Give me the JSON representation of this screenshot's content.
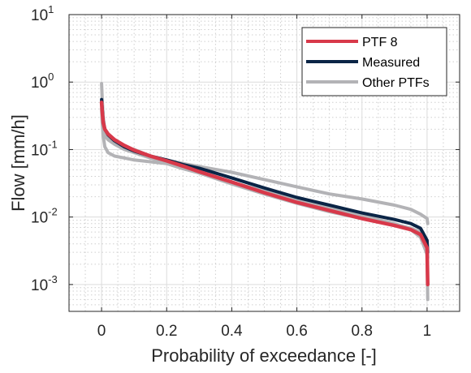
{
  "chart_data": {
    "type": "line",
    "xlabel": "Probability of exceedance [-]",
    "ylabel": "Flow [mm/h]",
    "xlim": [
      -0.1,
      1.1
    ],
    "ylim": [
      0.0004,
      10
    ],
    "yscale": "log",
    "grid": true,
    "minor_grid": true,
    "legend_position": "top-right",
    "x_ticks": [
      {
        "value": 0,
        "label": "0"
      },
      {
        "value": 0.2,
        "label": "0.2"
      },
      {
        "value": 0.4,
        "label": "0.4"
      },
      {
        "value": 0.6,
        "label": "0.6"
      },
      {
        "value": 0.8,
        "label": "0.8"
      },
      {
        "value": 1,
        "label": "1"
      }
    ],
    "y_ticks": [
      {
        "value": 0.001,
        "base": "10",
        "exp": "-3"
      },
      {
        "value": 0.01,
        "base": "10",
        "exp": "-2"
      },
      {
        "value": 0.1,
        "base": "10",
        "exp": "-1"
      },
      {
        "value": 1,
        "base": "10",
        "exp": "0"
      },
      {
        "value": 10,
        "base": "10",
        "exp": "1"
      }
    ],
    "series": [
      {
        "name": "Other PTFs",
        "color": "#b3b3b6",
        "lines": [
          {
            "x": [
              0,
              0.002,
              0.005,
              0.01,
              0.02,
              0.04,
              0.07,
              0.1,
              0.15,
              0.2,
              0.25,
              0.3,
              0.4,
              0.5,
              0.6,
              0.7,
              0.8,
              0.9,
              0.95,
              0.98,
              1.0,
              1.002
            ],
            "y": [
              0.95,
              0.55,
              0.3,
              0.2,
              0.16,
              0.13,
              0.11,
              0.1,
              0.08,
              0.07,
              0.062,
              0.056,
              0.046,
              0.036,
              0.028,
              0.022,
              0.0185,
              0.015,
              0.013,
              0.011,
              0.0095,
              0.008
            ]
          },
          {
            "x": [
              0,
              0.002,
              0.005,
              0.01,
              0.02,
              0.04,
              0.07,
              0.1,
              0.15,
              0.2,
              0.25,
              0.3,
              0.4,
              0.5,
              0.6,
              0.7,
              0.8,
              0.9,
              0.95,
              0.98,
              1.0,
              1.002
            ],
            "y": [
              0.4,
              0.25,
              0.16,
              0.11,
              0.09,
              0.08,
              0.075,
              0.07,
              0.066,
              0.062,
              0.052,
              0.045,
              0.033,
              0.024,
              0.018,
              0.0135,
              0.0105,
              0.008,
              0.0065,
              0.005,
              0.0028,
              0.0006
            ]
          },
          {
            "x": [
              0,
              0.002,
              0.005,
              0.01,
              0.02,
              0.04,
              0.07,
              0.1,
              0.15,
              0.2,
              0.25,
              0.3,
              0.4,
              0.5,
              0.6,
              0.7,
              0.8,
              0.9,
              0.95,
              0.98,
              1.0,
              1.002
            ],
            "y": [
              0.5,
              0.3,
              0.2,
              0.16,
              0.14,
              0.12,
              0.1,
              0.09,
              0.075,
              0.065,
              0.055,
              0.045,
              0.031,
              0.022,
              0.016,
              0.012,
              0.0095,
              0.0078,
              0.0068,
              0.006,
              0.0045,
              0.0025
            ]
          }
        ]
      },
      {
        "name": "Measured",
        "color": "#0b2546",
        "lines": [
          {
            "x": [
              0,
              0.002,
              0.005,
              0.01,
              0.02,
              0.04,
              0.07,
              0.1,
              0.15,
              0.2,
              0.25,
              0.3,
              0.4,
              0.5,
              0.6,
              0.7,
              0.8,
              0.9,
              0.95,
              0.98,
              1.0,
              1.002
            ],
            "y": [
              0.55,
              0.4,
              0.26,
              0.2,
              0.165,
              0.135,
              0.11,
              0.095,
              0.08,
              0.07,
              0.06,
              0.053,
              0.038,
              0.027,
              0.0195,
              0.015,
              0.0115,
              0.0092,
              0.008,
              0.0068,
              0.0045,
              0.003
            ]
          }
        ]
      },
      {
        "name": "PTF 8",
        "color": "#d8394a",
        "lines": [
          {
            "x": [
              0,
              0.002,
              0.005,
              0.01,
              0.02,
              0.04,
              0.07,
              0.1,
              0.15,
              0.2,
              0.25,
              0.3,
              0.4,
              0.5,
              0.6,
              0.7,
              0.8,
              0.9,
              0.95,
              0.98,
              1.0,
              1.002
            ],
            "y": [
              0.5,
              0.36,
              0.25,
              0.2,
              0.17,
              0.14,
              0.115,
              0.098,
              0.08,
              0.068,
              0.057,
              0.047,
              0.033,
              0.023,
              0.0165,
              0.0125,
              0.0095,
              0.0075,
              0.0065,
              0.0055,
              0.0035,
              0.001
            ]
          }
        ]
      }
    ],
    "legend": [
      {
        "name": "PTF 8",
        "color": "#d8394a"
      },
      {
        "name": "Measured",
        "color": "#0b2546"
      },
      {
        "name": "Other PTFs",
        "color": "#b3b3b6"
      }
    ]
  }
}
